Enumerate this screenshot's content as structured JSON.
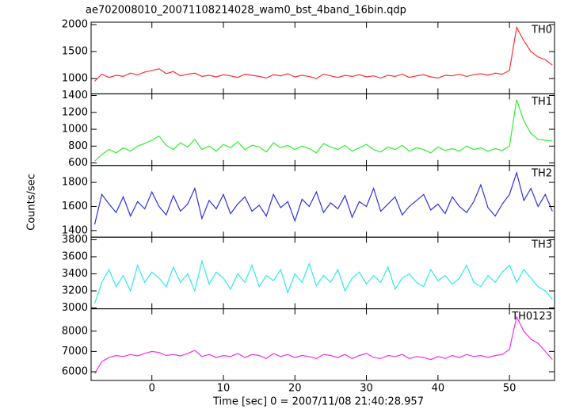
{
  "chart_data": {
    "type": "line",
    "title": "ae702008010_20071108214028_wam0_bst_4band_16bin.qdp",
    "xlabel": "Time [sec] 0 = 2007/11/08 21:40:28.957",
    "ylabel": "Counts/sec",
    "x": [
      -8,
      -7,
      -6,
      -5,
      -4,
      -3,
      -2,
      -1,
      0,
      1,
      2,
      3,
      4,
      5,
      6,
      7,
      8,
      9,
      10,
      11,
      12,
      13,
      14,
      15,
      16,
      17,
      18,
      19,
      20,
      21,
      22,
      23,
      24,
      25,
      26,
      27,
      28,
      29,
      30,
      31,
      32,
      33,
      34,
      35,
      36,
      37,
      38,
      39,
      40,
      41,
      42,
      43,
      44,
      45,
      46,
      47,
      48,
      49,
      50,
      51,
      52,
      53,
      54,
      55,
      56
    ],
    "xlim": [
      -8.5,
      56.3
    ],
    "xticks": [
      0,
      10,
      20,
      30,
      40,
      50
    ],
    "series": [
      {
        "name": "TH0",
        "color": "#ff3030",
        "ylim": [
          716,
          2045
        ],
        "yticks": [
          1000,
          1500,
          2000
        ],
        "values": [
          950,
          1080,
          1020,
          1060,
          1040,
          1100,
          1070,
          1120,
          1150,
          1180,
          1090,
          1130,
          1050,
          1080,
          1100,
          1040,
          1060,
          1030,
          1070,
          1050,
          1020,
          1080,
          1060,
          1040,
          1010,
          1070,
          1050,
          1090,
          1030,
          1060,
          1040,
          1000,
          1080,
          1050,
          1020,
          1060,
          1040,
          1070,
          1030,
          1050,
          1010,
          1060,
          1040,
          1080,
          1020,
          1050,
          1070,
          1030,
          1010,
          1060,
          1050,
          1080,
          1040,
          1070,
          1090,
          1060,
          1100,
          1080,
          1150,
          1950,
          1700,
          1500,
          1400,
          1350,
          1250
        ]
      },
      {
        "name": "TH1",
        "color": "#30ee30",
        "ylim": [
          570,
          1420
        ],
        "yticks": [
          600,
          800,
          1000,
          1200,
          1400
        ],
        "values": [
          620,
          700,
          760,
          720,
          780,
          740,
          800,
          830,
          870,
          920,
          810,
          760,
          840,
          790,
          880,
          760,
          800,
          740,
          820,
          780,
          850,
          760,
          810,
          790,
          730,
          840,
          780,
          810,
          760,
          800,
          770,
          720,
          830,
          790,
          760,
          810,
          740,
          780,
          820,
          760,
          730,
          790,
          760,
          810,
          740,
          780,
          760,
          720,
          790,
          750,
          770,
          740,
          800,
          760,
          780,
          740,
          770,
          750,
          800,
          1350,
          1100,
          950,
          880,
          870,
          860
        ]
      },
      {
        "name": "TH2",
        "color": "#3030e0",
        "ylim": [
          1345,
          1940
        ],
        "yticks": [
          1400,
          1600,
          1800
        ],
        "values": [
          1450,
          1700,
          1620,
          1550,
          1680,
          1520,
          1640,
          1580,
          1720,
          1600,
          1530,
          1690,
          1560,
          1620,
          1750,
          1500,
          1650,
          1580,
          1700,
          1540,
          1620,
          1680,
          1560,
          1610,
          1520,
          1700,
          1590,
          1640,
          1480,
          1660,
          1600,
          1720,
          1550,
          1630,
          1580,
          1690,
          1510,
          1640,
          1600,
          1750,
          1560,
          1620,
          1680,
          1530,
          1600,
          1650,
          1700,
          1570,
          1620,
          1540,
          1680,
          1600,
          1550,
          1640,
          1780,
          1590,
          1520,
          1620,
          1700,
          1880,
          1650,
          1750,
          1600,
          1700,
          1560
        ]
      },
      {
        "name": "TH3",
        "color": "#30e8e8",
        "ylim": [
          2990,
          3830
        ],
        "yticks": [
          3000,
          3200,
          3400,
          3600,
          3800
        ],
        "values": [
          3050,
          3300,
          3450,
          3250,
          3380,
          3200,
          3500,
          3300,
          3420,
          3350,
          3250,
          3480,
          3300,
          3400,
          3200,
          3550,
          3280,
          3420,
          3350,
          3220,
          3400,
          3300,
          3500,
          3250,
          3380,
          3320,
          3450,
          3180,
          3400,
          3300,
          3520,
          3260,
          3380,
          3300,
          3450,
          3200,
          3350,
          3420,
          3280,
          3380,
          3300,
          3480,
          3220,
          3350,
          3400,
          3300,
          3250,
          3450,
          3320,
          3380,
          3280,
          3350,
          3500,
          3300,
          3250,
          3380,
          3300,
          3420,
          3500,
          3300,
          3450,
          3350,
          3250,
          3200,
          3100
        ]
      },
      {
        "name": "TH0123",
        "color": "#ee30ee",
        "ylim": [
          5570,
          9100
        ],
        "yticks": [
          6000,
          7000,
          8000
        ],
        "values": [
          5900,
          6500,
          6700,
          6800,
          6750,
          6850,
          6780,
          6900,
          7000,
          6950,
          6800,
          6850,
          6780,
          6900,
          7050,
          6750,
          6850,
          6700,
          6800,
          6750,
          6900,
          6700,
          6850,
          6800,
          6650,
          6900,
          6750,
          6850,
          6700,
          6800,
          6750,
          6650,
          6850,
          6800,
          6700,
          6850,
          6650,
          6800,
          6900,
          6700,
          6650,
          6800,
          6750,
          6850,
          6650,
          6750,
          6700,
          6600,
          6750,
          6650,
          6800,
          6700,
          6850,
          6750,
          6800,
          6700,
          6800,
          6850,
          7100,
          8700,
          8000,
          7600,
          7400,
          7000,
          6600
        ]
      }
    ]
  }
}
